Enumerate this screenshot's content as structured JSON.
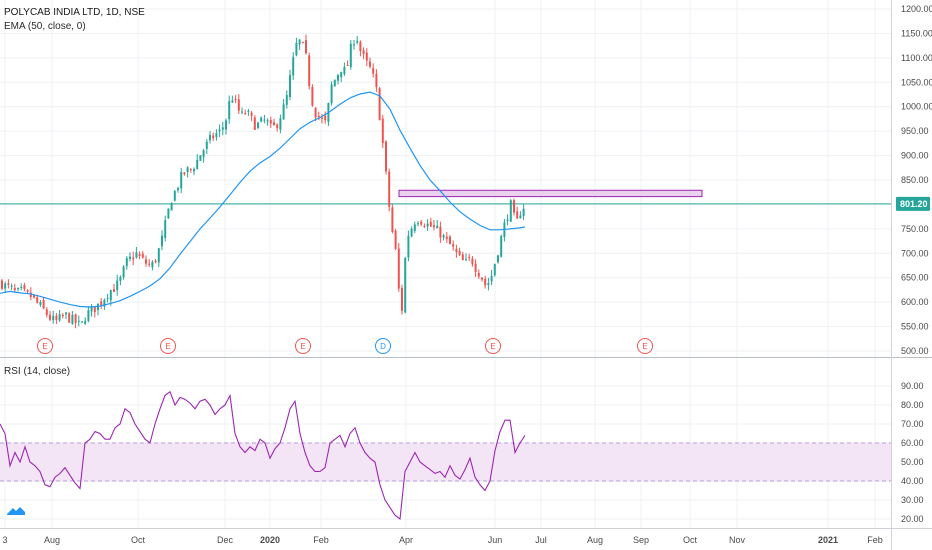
{
  "chart_data": [
    {
      "type": "candlestick",
      "title": "POLYCAB INDIA LTD, 1D, NSE",
      "indicator": "EMA (50, close, 0)",
      "y_ticks": [
        "1200.00",
        "1150.00",
        "1100.00",
        "1050.00",
        "1000.00",
        "950.00",
        "900.00",
        "850.00",
        "800.00",
        "750.00",
        "700.00",
        "650.00",
        "600.00",
        "550.00",
        "500.00"
      ],
      "ylim": [
        495,
        1205
      ],
      "x_ticks": [
        "3",
        "Aug",
        "Oct",
        "Dec",
        "2020",
        "Feb",
        "Apr",
        "Jun",
        "Jul",
        "Aug",
        "Sep",
        "Oct",
        "Nov",
        "2021",
        "Feb"
      ],
      "last_price": 801.2,
      "last_price_label": "801.20",
      "resistance_zone": [
        816,
        829
      ],
      "close_path": [
        [
          0,
          640
        ],
        [
          5,
          632
        ],
        [
          10,
          628
        ],
        [
          15,
          618
        ],
        [
          20,
          622
        ],
        [
          25,
          615
        ],
        [
          30,
          612
        ],
        [
          35,
          600
        ],
        [
          40,
          590
        ],
        [
          45,
          578
        ],
        [
          50,
          565
        ],
        [
          55,
          560
        ],
        [
          60,
          568
        ],
        [
          65,
          572
        ],
        [
          70,
          565
        ],
        [
          75,
          558
        ],
        [
          80,
          550
        ],
        [
          85,
          575
        ],
        [
          90,
          582
        ],
        [
          95,
          590
        ],
        [
          100,
          600
        ],
        [
          105,
          615
        ],
        [
          110,
          625
        ],
        [
          115,
          632
        ],
        [
          120,
          648
        ],
        [
          125,
          680
        ],
        [
          130,
          690
        ],
        [
          135,
          700
        ],
        [
          140,
          688
        ],
        [
          145,
          680
        ],
        [
          150,
          672
        ],
        [
          155,
          690
        ],
        [
          160,
          720
        ],
        [
          165,
          765
        ],
        [
          170,
          810
        ],
        [
          175,
          830
        ],
        [
          180,
          855
        ],
        [
          185,
          868
        ],
        [
          190,
          872
        ],
        [
          195,
          885
        ],
        [
          200,
          905
        ],
        [
          205,
          920
        ],
        [
          210,
          935
        ],
        [
          215,
          944
        ],
        [
          220,
          950
        ],
        [
          225,
          975
        ],
        [
          230,
          1025
        ],
        [
          235,
          1005
        ],
        [
          240,
          980
        ],
        [
          245,
          990
        ],
        [
          250,
          975
        ],
        [
          255,
          960
        ],
        [
          260,
          968
        ],
        [
          265,
          972
        ],
        [
          270,
          955
        ],
        [
          275,
          960
        ],
        [
          280,
          985
        ],
        [
          285,
          1010
        ],
        [
          290,
          1070
        ],
        [
          295,
          1125
        ],
        [
          300,
          1135
        ],
        [
          305,
          1100
        ],
        [
          310,
          1020
        ],
        [
          315,
          985
        ],
        [
          320,
          975
        ],
        [
          325,
          965
        ],
        [
          330,
          1040
        ],
        [
          335,
          1060
        ],
        [
          340,
          1080
        ],
        [
          345,
          1070
        ],
        [
          350,
          1120
        ],
        [
          355,
          1150
        ],
        [
          360,
          1110
        ],
        [
          365,
          1090
        ],
        [
          370,
          1075
        ],
        [
          375,
          1040
        ],
        [
          380,
          960
        ],
        [
          385,
          860
        ],
        [
          390,
          760
        ],
        [
          395,
          700
        ],
        [
          398,
          620
        ],
        [
          402,
          575
        ],
        [
          405,
          730
        ],
        [
          410,
          750
        ],
        [
          415,
          772
        ],
        [
          420,
          768
        ],
        [
          425,
          760
        ],
        [
          430,
          755
        ],
        [
          435,
          748
        ],
        [
          440,
          740
        ],
        [
          445,
          725
        ],
        [
          450,
          715
        ],
        [
          455,
          700
        ],
        [
          460,
          685
        ],
        [
          465,
          680
        ],
        [
          470,
          690
        ],
        [
          475,
          670
        ],
        [
          480,
          655
        ],
        [
          485,
          632
        ],
        [
          490,
          650
        ],
        [
          495,
          690
        ],
        [
          500,
          730
        ],
        [
          505,
          770
        ],
        [
          510,
          800
        ],
        [
          515,
          755
        ],
        [
          520,
          790
        ],
        [
          525,
          801
        ]
      ],
      "ema_path": [
        [
          0,
          618
        ],
        [
          10,
          622
        ],
        [
          20,
          619
        ],
        [
          30,
          617
        ],
        [
          40,
          612
        ],
        [
          50,
          606
        ],
        [
          60,
          600
        ],
        [
          70,
          595
        ],
        [
          80,
          591
        ],
        [
          90,
          590
        ],
        [
          100,
          592
        ],
        [
          110,
          597
        ],
        [
          120,
          603
        ],
        [
          130,
          612
        ],
        [
          140,
          622
        ],
        [
          150,
          633
        ],
        [
          160,
          648
        ],
        [
          170,
          670
        ],
        [
          180,
          698
        ],
        [
          190,
          724
        ],
        [
          200,
          750
        ],
        [
          210,
          772
        ],
        [
          220,
          795
        ],
        [
          230,
          820
        ],
        [
          240,
          845
        ],
        [
          250,
          868
        ],
        [
          260,
          885
        ],
        [
          270,
          898
        ],
        [
          280,
          915
        ],
        [
          290,
          935
        ],
        [
          300,
          955
        ],
        [
          310,
          968
        ],
        [
          320,
          978
        ],
        [
          330,
          990
        ],
        [
          340,
          1005
        ],
        [
          350,
          1018
        ],
        [
          360,
          1026
        ],
        [
          370,
          1030
        ],
        [
          380,
          1022
        ],
        [
          390,
          995
        ],
        [
          400,
          952
        ],
        [
          410,
          915
        ],
        [
          420,
          880
        ],
        [
          430,
          850
        ],
        [
          440,
          828
        ],
        [
          450,
          805
        ],
        [
          460,
          785
        ],
        [
          470,
          770
        ],
        [
          480,
          757
        ],
        [
          490,
          748
        ],
        [
          500,
          748
        ],
        [
          510,
          750
        ],
        [
          520,
          752
        ],
        [
          525,
          754
        ]
      ],
      "event_markers": [
        {
          "label": "E",
          "kind": "earnings",
          "x": 45
        },
        {
          "label": "E",
          "kind": "earnings",
          "x": 168
        },
        {
          "label": "E",
          "kind": "earnings",
          "x": 303
        },
        {
          "label": "D",
          "kind": "dividend",
          "x": 383
        },
        {
          "label": "E",
          "kind": "earnings",
          "x": 493
        },
        {
          "label": "E",
          "kind": "earnings",
          "x": 645
        }
      ]
    },
    {
      "type": "line",
      "indicator": "RSI (14, close)",
      "y_ticks": [
        "90.00",
        "80.00",
        "70.00",
        "60.00",
        "50.00",
        "40.00",
        "30.00",
        "20.00"
      ],
      "ylim": [
        16,
        92
      ],
      "band": [
        40,
        60
      ],
      "rsi_path": [
        [
          0,
          70
        ],
        [
          5,
          65
        ],
        [
          10,
          48
        ],
        [
          15,
          55
        ],
        [
          20,
          50
        ],
        [
          25,
          58
        ],
        [
          30,
          50
        ],
        [
          35,
          48
        ],
        [
          40,
          45
        ],
        [
          45,
          38
        ],
        [
          50,
          37
        ],
        [
          55,
          42
        ],
        [
          60,
          44
        ],
        [
          65,
          47
        ],
        [
          70,
          43
        ],
        [
          75,
          39
        ],
        [
          80,
          36
        ],
        [
          85,
          60
        ],
        [
          90,
          62
        ],
        [
          95,
          66
        ],
        [
          100,
          65
        ],
        [
          105,
          62
        ],
        [
          110,
          62
        ],
        [
          115,
          68
        ],
        [
          120,
          70
        ],
        [
          125,
          78
        ],
        [
          130,
          76
        ],
        [
          135,
          70
        ],
        [
          140,
          66
        ],
        [
          145,
          62
        ],
        [
          150,
          60
        ],
        [
          155,
          70
        ],
        [
          160,
          78
        ],
        [
          165,
          85
        ],
        [
          170,
          87
        ],
        [
          175,
          80
        ],
        [
          180,
          84
        ],
        [
          185,
          83
        ],
        [
          190,
          81
        ],
        [
          195,
          78
        ],
        [
          200,
          82
        ],
        [
          205,
          83
        ],
        [
          210,
          80
        ],
        [
          215,
          75
        ],
        [
          220,
          78
        ],
        [
          225,
          80
        ],
        [
          230,
          85
        ],
        [
          235,
          65
        ],
        [
          240,
          58
        ],
        [
          245,
          55
        ],
        [
          250,
          58
        ],
        [
          255,
          56
        ],
        [
          260,
          62
        ],
        [
          265,
          60
        ],
        [
          270,
          52
        ],
        [
          275,
          57
        ],
        [
          280,
          60
        ],
        [
          285,
          68
        ],
        [
          290,
          78
        ],
        [
          295,
          82
        ],
        [
          300,
          65
        ],
        [
          305,
          55
        ],
        [
          310,
          48
        ],
        [
          315,
          45
        ],
        [
          320,
          45
        ],
        [
          325,
          47
        ],
        [
          330,
          60
        ],
        [
          335,
          62
        ],
        [
          340,
          64
        ],
        [
          345,
          58
        ],
        [
          350,
          65
        ],
        [
          355,
          68
        ],
        [
          360,
          60
        ],
        [
          365,
          55
        ],
        [
          370,
          52
        ],
        [
          375,
          50
        ],
        [
          380,
          38
        ],
        [
          385,
          30
        ],
        [
          390,
          26
        ],
        [
          395,
          22
        ],
        [
          400,
          20
        ],
        [
          405,
          45
        ],
        [
          410,
          50
        ],
        [
          415,
          55
        ],
        [
          420,
          50
        ],
        [
          425,
          48
        ],
        [
          430,
          46
        ],
        [
          435,
          44
        ],
        [
          440,
          45
        ],
        [
          445,
          42
        ],
        [
          450,
          48
        ],
        [
          455,
          43
        ],
        [
          460,
          41
        ],
        [
          465,
          46
        ],
        [
          470,
          52
        ],
        [
          475,
          42
        ],
        [
          480,
          38
        ],
        [
          485,
          35
        ],
        [
          490,
          40
        ],
        [
          495,
          56
        ],
        [
          500,
          66
        ],
        [
          505,
          72
        ],
        [
          510,
          72
        ],
        [
          515,
          55
        ],
        [
          520,
          60
        ],
        [
          525,
          64
        ]
      ]
    }
  ],
  "colors": {
    "up": "#26a69a",
    "down": "#ef5350",
    "ema": "#2196f3",
    "rsi": "#9c27b0",
    "grid": "#eef1f5",
    "price_line": "#26a69a",
    "zone_fill": "#e1bee7",
    "zone_stroke": "#9c27b0",
    "rsi_band": "#f3e5f5"
  },
  "icons": {
    "logo": "tradingview-cloud-icon"
  }
}
